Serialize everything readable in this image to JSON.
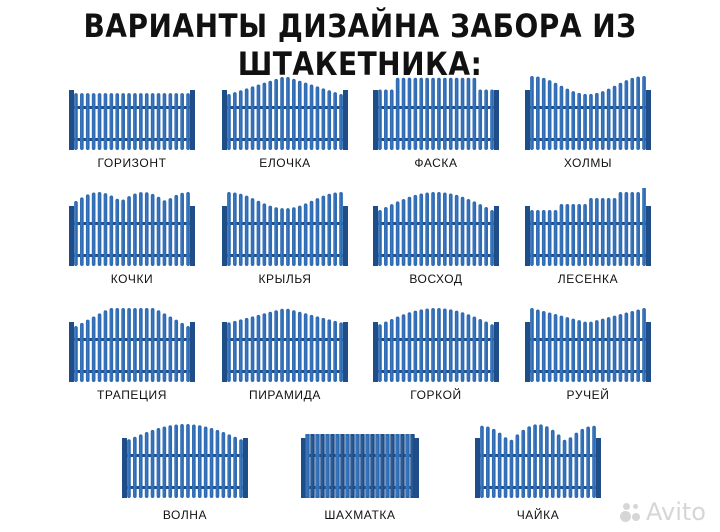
{
  "title": "ВАРИАНТЫ ДИЗАЙНА ЗАБОРА ИЗ ШТАКЕТНИКА:",
  "colors": {
    "fence": "#2f6bb3",
    "fence_dark": "#1e4d88",
    "highlight": "#5d93d6"
  },
  "designs": [
    {
      "label": "ГОРИЗОНТ",
      "profile": "flat"
    },
    {
      "label": "ЕЛОЧКА",
      "profile": "tree"
    },
    {
      "label": "ФАСКА",
      "profile": "bevel"
    },
    {
      "label": "ХОЛМЫ",
      "profile": "hills"
    },
    {
      "label": "КОЧКИ",
      "profile": "bumps"
    },
    {
      "label": "КРЫЛЬЯ",
      "profile": "wings"
    },
    {
      "label": "ВОСХОД",
      "profile": "sunrise"
    },
    {
      "label": "ЛЕСЕНКА",
      "profile": "steps"
    },
    {
      "label": "ТРАПЕЦИЯ",
      "profile": "trapezoid"
    },
    {
      "label": "ПИРАМИДА",
      "profile": "pyramid"
    },
    {
      "label": "ГОРКОЙ",
      "profile": "slide"
    },
    {
      "label": "РУЧЕЙ",
      "profile": "stream"
    },
    {
      "label": "ВОЛНА",
      "profile": "wave"
    },
    {
      "label": "ШАХМАТКА",
      "profile": "checker"
    },
    {
      "label": "ЧАЙКА",
      "profile": "seagull"
    }
  ],
  "watermark": "Avito"
}
